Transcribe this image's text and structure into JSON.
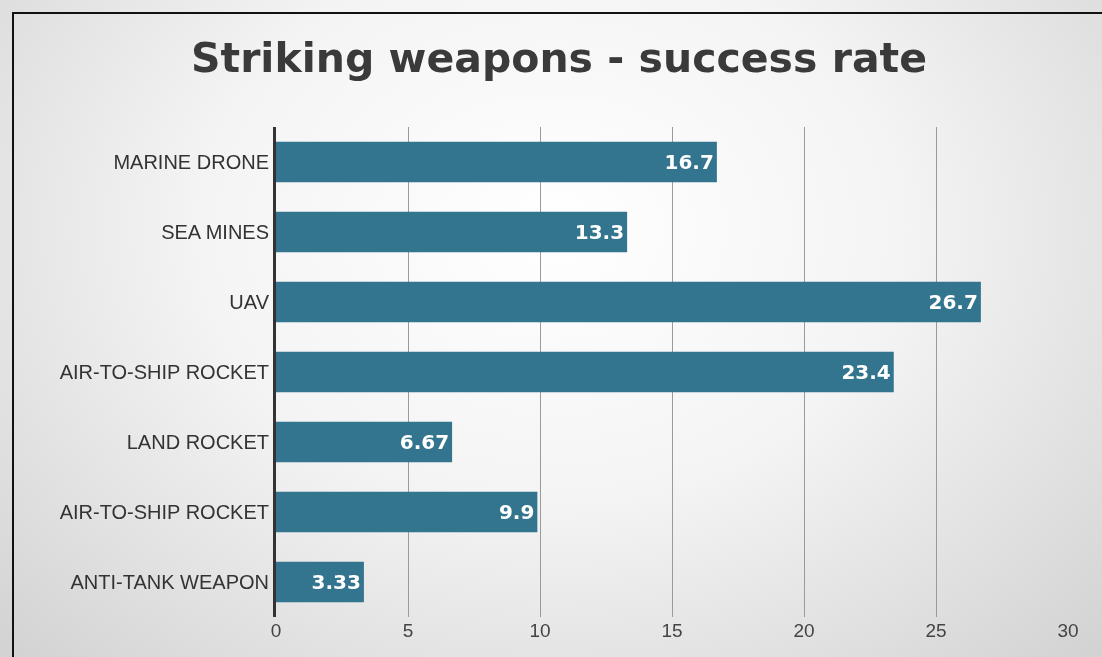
{
  "chart_data": {
    "type": "bar",
    "orientation": "horizontal",
    "title": "Striking weapons - success rate",
    "categories": [
      "MARINE DRONE",
      "SEA MINES",
      "UAV",
      "AIR-TO-SHIP ROCKET",
      "LAND ROCKET",
      "AIR-TO-SHIP ROCKET",
      "ANTI-TANK WEAPON"
    ],
    "values": [
      16.7,
      13.3,
      26.7,
      23.4,
      6.67,
      9.9,
      3.33
    ],
    "color": "#33758f",
    "xlim": [
      0,
      30
    ],
    "xticks": [
      0,
      5,
      10,
      15,
      20,
      25,
      30
    ],
    "grid": "x",
    "data_labels": true
  }
}
